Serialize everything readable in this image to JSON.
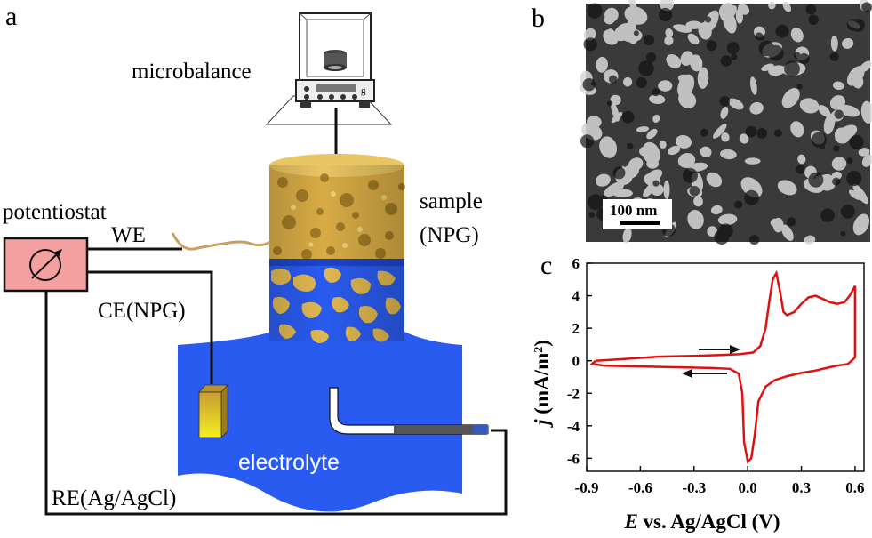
{
  "panels": {
    "a": "a",
    "b": "b",
    "c": "c"
  },
  "schematic": {
    "microbalance": "microbalance",
    "balance_unit": "g",
    "potentiostat": "potentiostat",
    "we": "WE",
    "ce": "CE(NPG)",
    "re": "RE(Ag/AgCl)",
    "sample_line1": "sample",
    "sample_line2": "(NPG)",
    "electrolyte": "electrolyte"
  },
  "sem": {
    "scale_bar": "100 nm"
  },
  "colors": {
    "electrolyte": "#2a5bf0",
    "gold": "#e0b850",
    "potentiostat_box": "#f4a0a0",
    "cv_curve": "#e01010"
  },
  "chart_data": {
    "type": "line",
    "xlabel_italic": "E",
    "xlabel_rest": " vs. Ag/AgCl (V)",
    "ylabel_italic": "j",
    "ylabel_rest": " (mA/m",
    "ylabel_sup": "2",
    "ylabel_end": ")",
    "xlim": [
      -0.9,
      0.65
    ],
    "ylim": [
      -6.8,
      6
    ],
    "xticks": [
      -0.9,
      -0.6,
      -0.3,
      0.0,
      0.3,
      0.6
    ],
    "xtick_labels": [
      "-0.9",
      "-0.6",
      "-0.3",
      "0.0",
      "0.3",
      "0.6"
    ],
    "yticks": [
      -6,
      -4,
      -2,
      0,
      2,
      4,
      6
    ],
    "ytick_labels": [
      "-6",
      "-4",
      "-2",
      "0",
      "2",
      "4",
      "6"
    ],
    "series": [
      {
        "x": [
          -0.85,
          -0.7,
          -0.5,
          -0.3,
          -0.15,
          -0.05,
          0.03,
          0.07,
          0.1,
          0.12,
          0.14,
          0.16,
          0.18,
          0.2,
          0.22,
          0.26,
          0.3,
          0.34,
          0.38,
          0.42,
          0.46,
          0.5,
          0.54,
          0.57,
          0.6,
          0.6,
          0.56,
          0.5,
          0.44,
          0.38,
          0.3,
          0.22,
          0.15,
          0.1,
          0.06,
          0.04,
          0.02,
          0.0,
          -0.02,
          -0.03,
          -0.05,
          -0.1,
          -0.2,
          -0.4,
          -0.6,
          -0.8,
          -0.87,
          -0.85
        ],
        "y": [
          0.0,
          0.1,
          0.25,
          0.3,
          0.35,
          0.4,
          0.5,
          0.9,
          2.0,
          3.6,
          5.0,
          5.4,
          4.3,
          3.0,
          2.8,
          3.0,
          3.5,
          3.9,
          4.0,
          3.8,
          3.6,
          3.5,
          3.6,
          4.0,
          4.6,
          0.2,
          -0.2,
          -0.3,
          -0.45,
          -0.6,
          -0.75,
          -0.95,
          -1.2,
          -1.6,
          -2.5,
          -4.5,
          -6.0,
          -6.2,
          -5.0,
          -2.0,
          -0.8,
          -0.5,
          -0.45,
          -0.4,
          -0.35,
          -0.3,
          -0.2,
          0.0
        ]
      }
    ],
    "annotations": [
      "forward-sweep-arrow",
      "reverse-sweep-arrow"
    ]
  }
}
